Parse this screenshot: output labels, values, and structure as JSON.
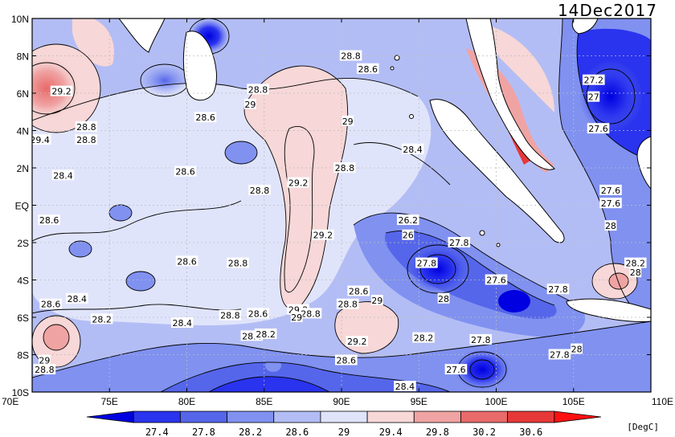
{
  "date": "14Dec2017",
  "units": "[DegC]",
  "x_ticks": [
    "70E",
    "75E",
    "80E",
    "85E",
    "90E",
    "95E",
    "100E",
    "105E",
    "110E"
  ],
  "y_ticks": [
    "10N",
    "8N",
    "6N",
    "4N",
    "2N",
    "EQ",
    "2S",
    "4S",
    "6S",
    "8S",
    "10S"
  ],
  "colorbar": {
    "labels": [
      "27.4",
      "27.8",
      "28.2",
      "28.6",
      "29",
      "29.4",
      "29.8",
      "30.2",
      "30.6"
    ],
    "colors": [
      "#0000e0",
      "#2a33ee",
      "#5566ea",
      "#8091f0",
      "#b3bdf5",
      "#e0e4fb",
      "#f7d7d7",
      "#f0a3a3",
      "#e86a6a",
      "#e63838",
      "#ff1010"
    ]
  },
  "contour_labels": [
    {
      "text": "28.8",
      "lon": 90.6,
      "lat": 8.0
    },
    {
      "text": "28.6",
      "lon": 91.7,
      "lat": 7.3
    },
    {
      "text": "29.2",
      "lon": 71.9,
      "lat": 6.1
    },
    {
      "text": "28.8",
      "lon": 84.6,
      "lat": 6.2
    },
    {
      "text": "29",
      "lon": 84.1,
      "lat": 5.4
    },
    {
      "text": "28.6",
      "lon": 81.2,
      "lat": 4.7
    },
    {
      "text": "28.8",
      "lon": 73.5,
      "lat": 4.2
    },
    {
      "text": "29",
      "lon": 90.4,
      "lat": 4.5
    },
    {
      "text": "29.4",
      "lon": 70.5,
      "lat": 3.5
    },
    {
      "text": "28.8",
      "lon": 73.5,
      "lat": 3.5
    },
    {
      "text": "28.4",
      "lon": 94.6,
      "lat": 3.0
    },
    {
      "text": "28.4",
      "lon": 72.0,
      "lat": 1.6
    },
    {
      "text": "28.6",
      "lon": 79.9,
      "lat": 1.8
    },
    {
      "text": "28.8",
      "lon": 90.2,
      "lat": 2.0
    },
    {
      "text": "29.2",
      "lon": 87.2,
      "lat": 1.2
    },
    {
      "text": "28.8",
      "lon": 84.7,
      "lat": 0.8
    },
    {
      "text": "28.6",
      "lon": 71.1,
      "lat": -0.8
    },
    {
      "text": "26.2",
      "lon": 94.3,
      "lat": -0.8
    },
    {
      "text": "26",
      "lon": 94.3,
      "lat": -1.6
    },
    {
      "text": "27.8",
      "lon": 97.6,
      "lat": -2.0
    },
    {
      "text": "29.2",
      "lon": 88.8,
      "lat": -1.6
    },
    {
      "text": "28.6",
      "lon": 80.0,
      "lat": -3.0
    },
    {
      "text": "28.8",
      "lon": 83.3,
      "lat": -3.1
    },
    {
      "text": "27.8",
      "lon": 95.5,
      "lat": -3.1
    },
    {
      "text": "27.6",
      "lon": 100.0,
      "lat": -4.0
    },
    {
      "text": "27.8",
      "lon": 104.0,
      "lat": -4.5
    },
    {
      "text": "28.6",
      "lon": 91.1,
      "lat": -4.6
    },
    {
      "text": "28.6",
      "lon": 71.2,
      "lat": -5.3
    },
    {
      "text": "28.4",
      "lon": 72.9,
      "lat": -5.0
    },
    {
      "text": "29",
      "lon": 92.3,
      "lat": -5.1
    },
    {
      "text": "28.8",
      "lon": 90.4,
      "lat": -5.3
    },
    {
      "text": "28",
      "lon": 96.6,
      "lat": -5.0
    },
    {
      "text": "29.2",
      "lon": 87.2,
      "lat": -5.6
    },
    {
      "text": "28.8",
      "lon": 88.0,
      "lat": -5.8
    },
    {
      "text": "29",
      "lon": 87.1,
      "lat": -6.0
    },
    {
      "text": "28.2",
      "lon": 74.5,
      "lat": -6.1
    },
    {
      "text": "28.8",
      "lon": 82.8,
      "lat": -5.9
    },
    {
      "text": "28.6",
      "lon": 84.6,
      "lat": -5.8
    },
    {
      "text": "28.4",
      "lon": 79.7,
      "lat": -6.3
    },
    {
      "text": "28.4",
      "lon": 84.2,
      "lat": -7.0
    },
    {
      "text": "28.2",
      "lon": 85.1,
      "lat": -6.9
    },
    {
      "text": "29.2",
      "lon": 91.0,
      "lat": -7.3
    },
    {
      "text": "28.2",
      "lon": 95.3,
      "lat": -7.1
    },
    {
      "text": "27.8",
      "lon": 99.0,
      "lat": -7.2
    },
    {
      "text": "28",
      "lon": 105.2,
      "lat": -7.7
    },
    {
      "text": "27.8",
      "lon": 104.1,
      "lat": -8.0
    },
    {
      "text": "28.6",
      "lon": 90.3,
      "lat": -8.3
    },
    {
      "text": "29",
      "lon": 70.8,
      "lat": -8.3
    },
    {
      "text": "28.8",
      "lon": 70.8,
      "lat": -8.8
    },
    {
      "text": "27.6",
      "lon": 97.4,
      "lat": -8.8
    },
    {
      "text": "28.4",
      "lon": 94.1,
      "lat": -9.7
    },
    {
      "text": "27.2",
      "lon": 106.3,
      "lat": 6.7
    },
    {
      "text": "27",
      "lon": 106.3,
      "lat": 5.8
    },
    {
      "text": "27.6",
      "lon": 106.6,
      "lat": 4.1
    },
    {
      "text": "27.6",
      "lon": 107.4,
      "lat": 0.8
    },
    {
      "text": "27.6",
      "lon": 107.4,
      "lat": 0.1
    },
    {
      "text": "28",
      "lon": 107.4,
      "lat": -1.1
    },
    {
      "text": "28.2",
      "lon": 109.0,
      "lat": -3.1
    },
    {
      "text": "28",
      "lon": 109.0,
      "lat": -3.6
    }
  ]
}
